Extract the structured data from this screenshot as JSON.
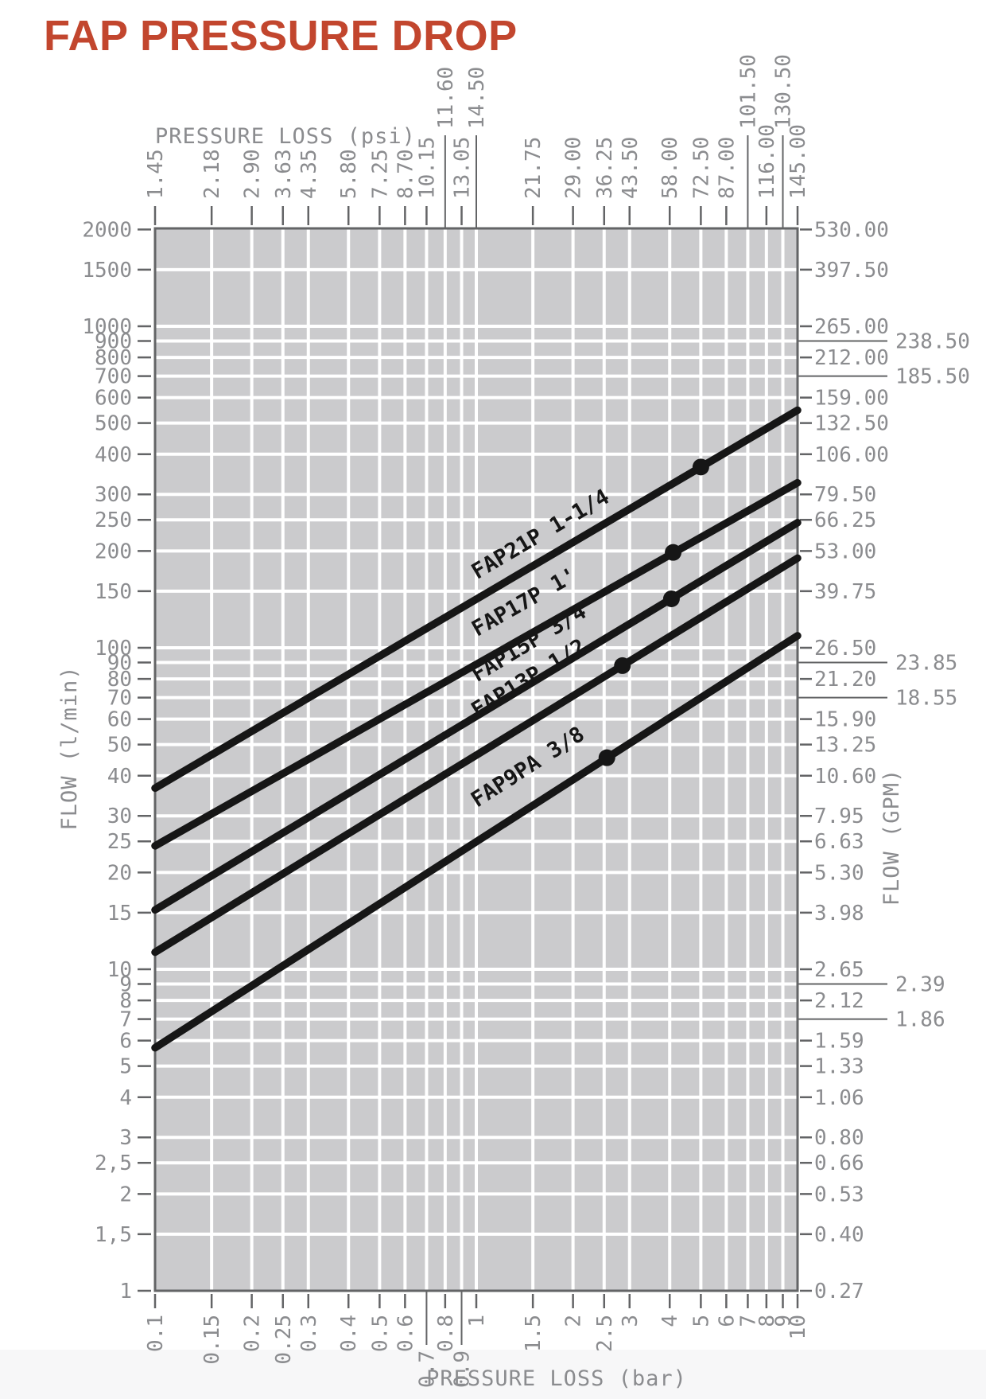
{
  "title": "FAP PRESSURE DROP",
  "colors": {
    "title_red": "#c2462e",
    "label_gray": "#8b8c8f",
    "axis_gray": "#636466",
    "grid_white": "#ffffff",
    "plot_bg": "#cbcbcd",
    "line_black": "#161616",
    "footer_strip": "#f7f7f8"
  },
  "chart_data": {
    "type": "line",
    "title": "FAP PRESSURE DROP",
    "x_scale": "log",
    "y_scale": "log",
    "xlim": [
      0.1,
      10
    ],
    "ylim": [
      1,
      2000
    ],
    "grid": "on",
    "axes": {
      "top": {
        "title": "PRESSURE LOSS (psi)",
        "ticks": [
          [
            0.1,
            "1.45"
          ],
          [
            0.15,
            "2.18"
          ],
          [
            0.2,
            "2.90"
          ],
          [
            0.25,
            "3.63"
          ],
          [
            0.3,
            "4.35"
          ],
          [
            0.4,
            "5.80"
          ],
          [
            0.5,
            "7.25"
          ],
          [
            0.6,
            "8.70"
          ],
          [
            0.7,
            "10.15"
          ],
          [
            0.8,
            "11.60",
            1
          ],
          [
            0.9,
            "13.05"
          ],
          [
            1,
            "14.50",
            1
          ],
          [
            1.5,
            "21.75"
          ],
          [
            2,
            "29.00"
          ],
          [
            2.5,
            "36.25"
          ],
          [
            3,
            "43.50"
          ],
          [
            4,
            "58.00"
          ],
          [
            5,
            "72.50"
          ],
          [
            6,
            "87.00"
          ],
          [
            7,
            "101.50",
            1
          ],
          [
            8,
            "116.00"
          ],
          [
            9,
            "130.50",
            1
          ],
          [
            10,
            "145.00"
          ]
        ]
      },
      "bottom": {
        "title": "PRESSURE LOSS (bar)",
        "ticks": [
          [
            0.1,
            "0.1"
          ],
          [
            0.15,
            "0.15"
          ],
          [
            0.2,
            "0.2"
          ],
          [
            0.25,
            "0.25"
          ],
          [
            0.3,
            "0.3"
          ],
          [
            0.4,
            "0.4"
          ],
          [
            0.5,
            "0.5"
          ],
          [
            0.6,
            "0.6"
          ],
          [
            0.7,
            "0.7",
            1
          ],
          [
            0.8,
            "0.8"
          ],
          [
            0.9,
            "0.9",
            1
          ],
          [
            1,
            "1"
          ],
          [
            1.5,
            "1.5"
          ],
          [
            2,
            "2"
          ],
          [
            2.5,
            "2.5"
          ],
          [
            3,
            "3"
          ],
          [
            4,
            "4"
          ],
          [
            5,
            "5"
          ],
          [
            6,
            "6"
          ],
          [
            7,
            "7"
          ],
          [
            8,
            "8"
          ],
          [
            9,
            "9"
          ],
          [
            10,
            "10"
          ]
        ]
      },
      "left": {
        "title": "FLOW (l/min)",
        "ticks": [
          [
            2000,
            "2000"
          ],
          [
            1500,
            "1500"
          ],
          [
            1000,
            "1000"
          ],
          [
            900,
            "900"
          ],
          [
            800,
            "800"
          ],
          [
            700,
            "700"
          ],
          [
            600,
            "600"
          ],
          [
            500,
            "500"
          ],
          [
            400,
            "400"
          ],
          [
            300,
            "300"
          ],
          [
            250,
            "250"
          ],
          [
            200,
            "200"
          ],
          [
            150,
            "150"
          ],
          [
            100,
            "100"
          ],
          [
            90,
            "90"
          ],
          [
            80,
            "80"
          ],
          [
            70,
            "70"
          ],
          [
            60,
            "60"
          ],
          [
            50,
            "50"
          ],
          [
            40,
            "40"
          ],
          [
            30,
            "30"
          ],
          [
            25,
            "25"
          ],
          [
            20,
            "20"
          ],
          [
            15,
            "15"
          ],
          [
            10,
            "10"
          ],
          [
            9,
            "9"
          ],
          [
            8,
            "8"
          ],
          [
            7,
            "7"
          ],
          [
            6,
            "6"
          ],
          [
            5,
            "5"
          ],
          [
            4,
            "4"
          ],
          [
            3,
            "3"
          ],
          [
            2.5,
            "2,5"
          ],
          [
            2,
            "2"
          ],
          [
            1.5,
            "1,5"
          ],
          [
            1,
            "1"
          ]
        ]
      },
      "right": {
        "title": "FLOW (GPM)",
        "ticks": [
          [
            2000,
            "530.00"
          ],
          [
            1500,
            "397.50"
          ],
          [
            1000,
            "265.00"
          ],
          [
            900,
            "238.50",
            1
          ],
          [
            800,
            "212.00"
          ],
          [
            700,
            "185.50",
            1
          ],
          [
            600,
            "159.00"
          ],
          [
            500,
            "132.50"
          ],
          [
            400,
            "106.00"
          ],
          [
            300,
            "79.50"
          ],
          [
            250,
            "66.25"
          ],
          [
            200,
            "53.00"
          ],
          [
            150,
            "39.75"
          ],
          [
            100,
            "26.50"
          ],
          [
            90,
            "23.85",
            1
          ],
          [
            80,
            "21.20"
          ],
          [
            70,
            "18.55",
            1
          ],
          [
            60,
            "15.90"
          ],
          [
            50,
            "13.25"
          ],
          [
            40,
            "10.60"
          ],
          [
            30,
            "7.95"
          ],
          [
            25,
            "6.63"
          ],
          [
            20,
            "5.30"
          ],
          [
            15,
            "3.98"
          ],
          [
            10,
            "2.65"
          ],
          [
            9,
            "2.39",
            1
          ],
          [
            8,
            "2.12"
          ],
          [
            7,
            "1.86",
            1
          ],
          [
            6,
            "1.59"
          ],
          [
            5,
            "1.33"
          ],
          [
            4,
            "1.06"
          ],
          [
            3,
            "0.80"
          ],
          [
            2.5,
            "0.66"
          ],
          [
            2,
            "0.53"
          ],
          [
            1.5,
            "0.40"
          ],
          [
            1,
            "0.27"
          ]
        ]
      }
    },
    "series": [
      {
        "name": "FAP21P 1-1/4",
        "points": [
          [
            0.1,
            36.6
          ],
          [
            10,
            548
          ]
        ],
        "marker": [
          5,
          365
        ]
      },
      {
        "name": "FAP17P 1'",
        "points": [
          [
            0.1,
            24.2
          ],
          [
            10,
            326
          ]
        ],
        "marker": [
          4.1,
          198
        ]
      },
      {
        "name": "FAP15P 3/4",
        "points": [
          [
            0.1,
            15.3
          ],
          [
            10,
            245
          ]
        ],
        "marker": [
          4.05,
          142
        ]
      },
      {
        "name": "FAP13P 1/2",
        "points": [
          [
            0.1,
            11.3
          ],
          [
            10,
            190
          ]
        ],
        "marker": [
          2.85,
          88
        ]
      },
      {
        "name": "FAP9PA 3/8",
        "points": [
          [
            0.1,
            5.7
          ],
          [
            10,
            109
          ]
        ],
        "marker": [
          2.55,
          45.5
        ]
      }
    ]
  }
}
